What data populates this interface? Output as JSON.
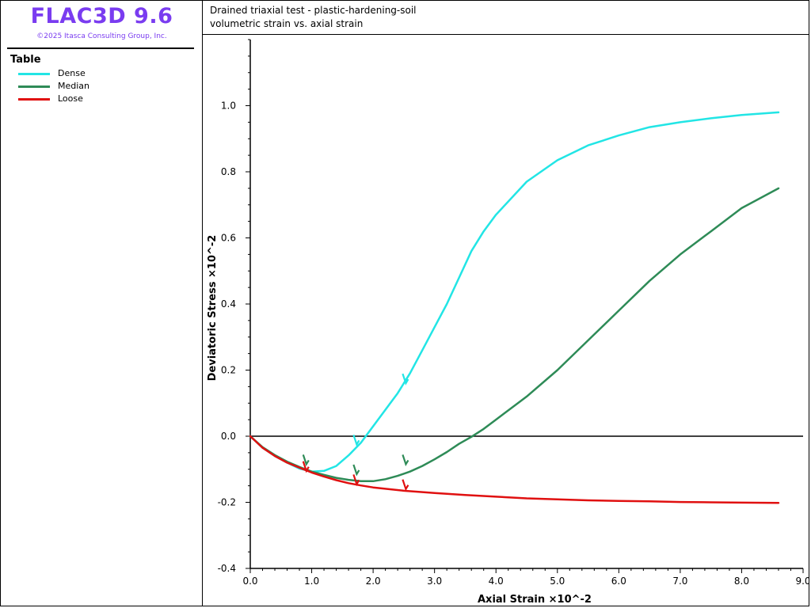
{
  "app": {
    "title": "FLAC3D 9.6",
    "copyright": "©2025 Itasca Consulting Group, Inc."
  },
  "legend": {
    "title": "Table",
    "items": [
      {
        "label": "Dense",
        "color": "#22e5e5"
      },
      {
        "label": "Median",
        "color": "#2e8b57"
      },
      {
        "label": "Loose",
        "color": "#e01010"
      }
    ]
  },
  "chart_data": {
    "type": "line",
    "title": "Drained triaxial test - plastic-hardening-soil",
    "subtitle": "volumetric strain vs. axial strain",
    "xlabel": "Axial Strain ×10^-2",
    "ylabel": "Deviatoric Stress ×10^-2",
    "xlim": [
      0,
      9
    ],
    "ylim": [
      -0.4,
      1.2
    ],
    "x_ticks": [
      "0.0",
      "1.0",
      "2.0",
      "3.0",
      "4.0",
      "5.0",
      "6.0",
      "7.0",
      "8.0",
      "9.0"
    ],
    "y_ticks": [
      "-0.4",
      "-0.2",
      "0.0",
      "0.2",
      "0.4",
      "0.6",
      "0.8",
      "1.0"
    ],
    "x_tick_values": [
      0,
      1,
      2,
      3,
      4,
      5,
      6,
      7,
      8,
      9
    ],
    "y_tick_values": [
      -0.4,
      -0.2,
      0,
      0.2,
      0.4,
      0.6,
      0.8,
      1.0
    ],
    "zero_line": true,
    "grid": false,
    "series": [
      {
        "name": "Dense",
        "color": "#22e5e5",
        "points": [
          [
            0,
            0
          ],
          [
            0.2,
            -0.035
          ],
          [
            0.4,
            -0.06
          ],
          [
            0.6,
            -0.08
          ],
          [
            0.8,
            -0.098
          ],
          [
            1.0,
            -0.107
          ],
          [
            1.2,
            -0.105
          ],
          [
            1.4,
            -0.09
          ],
          [
            1.6,
            -0.058
          ],
          [
            1.8,
            -0.02
          ],
          [
            2.0,
            0.03
          ],
          [
            2.2,
            0.08
          ],
          [
            2.4,
            0.13
          ],
          [
            2.6,
            0.19
          ],
          [
            2.8,
            0.26
          ],
          [
            3.0,
            0.33
          ],
          [
            3.2,
            0.4
          ],
          [
            3.4,
            0.48
          ],
          [
            3.6,
            0.56
          ],
          [
            3.8,
            0.62
          ],
          [
            4.0,
            0.67
          ],
          [
            4.5,
            0.77
          ],
          [
            5.0,
            0.835
          ],
          [
            5.5,
            0.88
          ],
          [
            6.0,
            0.91
          ],
          [
            6.5,
            0.935
          ],
          [
            7.0,
            0.95
          ],
          [
            7.5,
            0.962
          ],
          [
            8.0,
            0.972
          ],
          [
            8.6,
            0.98
          ]
        ],
        "markers": [
          [
            1.72,
            -0.02
          ],
          [
            2.52,
            0.165
          ]
        ]
      },
      {
        "name": "Median",
        "color": "#2e8b57",
        "points": [
          [
            0,
            0
          ],
          [
            0.2,
            -0.033
          ],
          [
            0.4,
            -0.057
          ],
          [
            0.6,
            -0.077
          ],
          [
            0.8,
            -0.093
          ],
          [
            1.0,
            -0.107
          ],
          [
            1.2,
            -0.117
          ],
          [
            1.4,
            -0.126
          ],
          [
            1.6,
            -0.132
          ],
          [
            1.8,
            -0.136
          ],
          [
            2.0,
            -0.136
          ],
          [
            2.2,
            -0.13
          ],
          [
            2.4,
            -0.12
          ],
          [
            2.6,
            -0.107
          ],
          [
            2.8,
            -0.09
          ],
          [
            3.0,
            -0.07
          ],
          [
            3.2,
            -0.048
          ],
          [
            3.4,
            -0.023
          ],
          [
            3.6,
            -0.002
          ],
          [
            3.8,
            0.022
          ],
          [
            4.0,
            0.05
          ],
          [
            4.5,
            0.12
          ],
          [
            5.0,
            0.2
          ],
          [
            5.5,
            0.29
          ],
          [
            6.0,
            0.38
          ],
          [
            6.5,
            0.47
          ],
          [
            7.0,
            0.55
          ],
          [
            7.5,
            0.62
          ],
          [
            8.0,
            0.69
          ],
          [
            8.6,
            0.75
          ]
        ],
        "markers": [
          [
            0.9,
            -0.08
          ],
          [
            1.72,
            -0.11
          ],
          [
            2.52,
            -0.08
          ]
        ]
      },
      {
        "name": "Loose",
        "color": "#e01010",
        "points": [
          [
            0,
            0
          ],
          [
            0.2,
            -0.035
          ],
          [
            0.4,
            -0.06
          ],
          [
            0.6,
            -0.08
          ],
          [
            0.8,
            -0.095
          ],
          [
            1.0,
            -0.11
          ],
          [
            1.2,
            -0.122
          ],
          [
            1.4,
            -0.133
          ],
          [
            1.6,
            -0.142
          ],
          [
            1.8,
            -0.149
          ],
          [
            2.0,
            -0.155
          ],
          [
            2.5,
            -0.165
          ],
          [
            3.0,
            -0.172
          ],
          [
            3.5,
            -0.178
          ],
          [
            4.0,
            -0.183
          ],
          [
            4.5,
            -0.188
          ],
          [
            5.0,
            -0.191
          ],
          [
            5.5,
            -0.194
          ],
          [
            6.0,
            -0.196
          ],
          [
            6.5,
            -0.197
          ],
          [
            7.0,
            -0.199
          ],
          [
            7.5,
            -0.2
          ],
          [
            8.0,
            -0.201
          ],
          [
            8.6,
            -0.202
          ]
        ],
        "markers": [
          [
            0.9,
            -0.1
          ],
          [
            1.72,
            -0.14
          ],
          [
            2.52,
            -0.155
          ]
        ]
      }
    ]
  }
}
